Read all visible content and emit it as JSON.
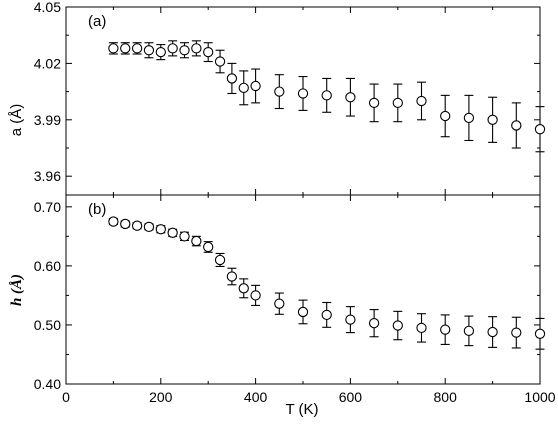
{
  "chart_data": [
    {
      "type": "scatter",
      "panel_label": "(a)",
      "ylabel": "a (Å)",
      "xlabel": "",
      "xlim": [
        0,
        1000
      ],
      "ylim": [
        3.95,
        4.05
      ],
      "x_ticks": [
        0,
        200,
        400,
        600,
        800,
        1000
      ],
      "x_tick_labels": [],
      "y_ticks": [
        3.96,
        3.99,
        4.02,
        4.05
      ],
      "y_tick_labels": [
        "3.96",
        "3.99",
        "4.02",
        "4.05"
      ],
      "grid": false,
      "marker": "open-circle",
      "series": [
        {
          "x": [
            100,
            125,
            150,
            175,
            200,
            225,
            250,
            275,
            300,
            325,
            350,
            375,
            400,
            450,
            500,
            550,
            600,
            650,
            700,
            750,
            800,
            850,
            900,
            950,
            1000
          ],
          "y": [
            4.028,
            4.028,
            4.028,
            4.027,
            4.026,
            4.028,
            4.027,
            4.028,
            4.026,
            4.021,
            4.012,
            4.007,
            4.008,
            4.005,
            4.004,
            4.003,
            4.002,
            3.999,
            3.999,
            4.0,
            3.992,
            3.991,
            3.99,
            3.987,
            3.985
          ],
          "err": [
            0.003,
            0.003,
            0.003,
            0.004,
            0.004,
            0.004,
            0.004,
            0.004,
            0.005,
            0.006,
            0.008,
            0.009,
            0.009,
            0.009,
            0.009,
            0.009,
            0.01,
            0.01,
            0.01,
            0.01,
            0.011,
            0.012,
            0.012,
            0.012,
            0.012
          ]
        }
      ]
    },
    {
      "type": "scatter",
      "panel_label": "(b)",
      "ylabel": "h (Å)",
      "xlabel": "T (K)",
      "xlim": [
        0,
        1000
      ],
      "ylim": [
        0.4,
        0.72
      ],
      "x_ticks": [
        0,
        200,
        400,
        600,
        800,
        1000
      ],
      "x_tick_labels": [
        "0",
        "200",
        "400",
        "600",
        "800",
        "1000"
      ],
      "y_ticks": [
        0.4,
        0.5,
        0.6,
        0.7
      ],
      "y_tick_labels": [
        "0.40",
        "0.50",
        "0.60",
        "0.70"
      ],
      "grid": false,
      "marker": "open-circle",
      "series": [
        {
          "x": [
            100,
            125,
            150,
            175,
            200,
            225,
            250,
            275,
            300,
            325,
            350,
            375,
            400,
            450,
            500,
            550,
            600,
            650,
            700,
            750,
            800,
            850,
            900,
            950,
            1000
          ],
          "y": [
            0.675,
            0.671,
            0.668,
            0.666,
            0.662,
            0.656,
            0.65,
            0.642,
            0.632,
            0.61,
            0.582,
            0.562,
            0.55,
            0.536,
            0.522,
            0.517,
            0.509,
            0.503,
            0.499,
            0.495,
            0.492,
            0.49,
            0.488,
            0.487,
            0.485
          ],
          "err": [
            0.005,
            0.005,
            0.005,
            0.005,
            0.006,
            0.006,
            0.007,
            0.008,
            0.009,
            0.011,
            0.014,
            0.016,
            0.017,
            0.018,
            0.02,
            0.021,
            0.022,
            0.023,
            0.024,
            0.024,
            0.025,
            0.025,
            0.026,
            0.026,
            0.026
          ]
        }
      ]
    }
  ]
}
